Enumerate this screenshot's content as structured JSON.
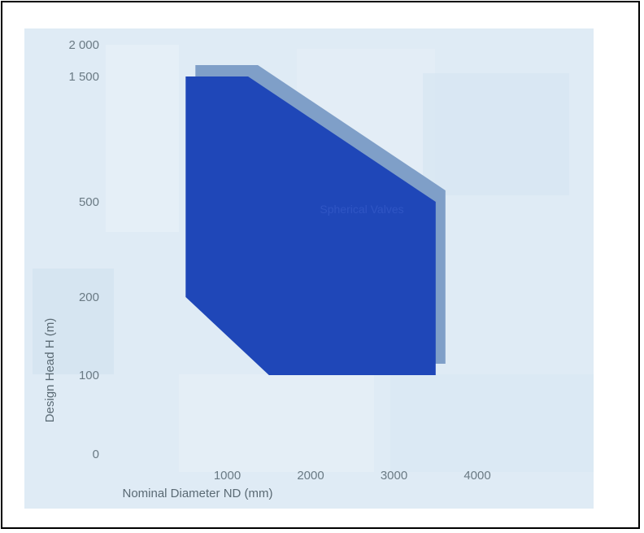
{
  "chart_data": {
    "type": "area",
    "xlabel": "Nominal Diameter ND (mm)",
    "ylabel": "Design Head H (m)",
    "x_ticks": [
      {
        "value": 1000,
        "label": "1000"
      },
      {
        "value": 2000,
        "label": "2000"
      },
      {
        "value": 3000,
        "label": "3000"
      },
      {
        "value": 4000,
        "label": "4000"
      }
    ],
    "y_ticks": [
      {
        "value": 0,
        "label": "0"
      },
      {
        "value": 100,
        "label": "100"
      },
      {
        "value": 200,
        "label": "200"
      },
      {
        "value": 500,
        "label": "500"
      },
      {
        "value": 1500,
        "label": "1 500"
      },
      {
        "value": 2000,
        "label": "2 000"
      }
    ],
    "xlim": [
      0,
      4000
    ],
    "ylim": [
      0,
      2000
    ],
    "grid": false,
    "region": {
      "label": "Spherical Valves",
      "color": "#1f47b8",
      "shadow_color": "#7f9fc8",
      "polygon": [
        [
          500,
          1500
        ],
        [
          1250,
          1500
        ],
        [
          3500,
          500
        ],
        [
          3500,
          100
        ],
        [
          1500,
          100
        ],
        [
          500,
          200
        ]
      ]
    },
    "background_color": "#dbe9f4"
  }
}
